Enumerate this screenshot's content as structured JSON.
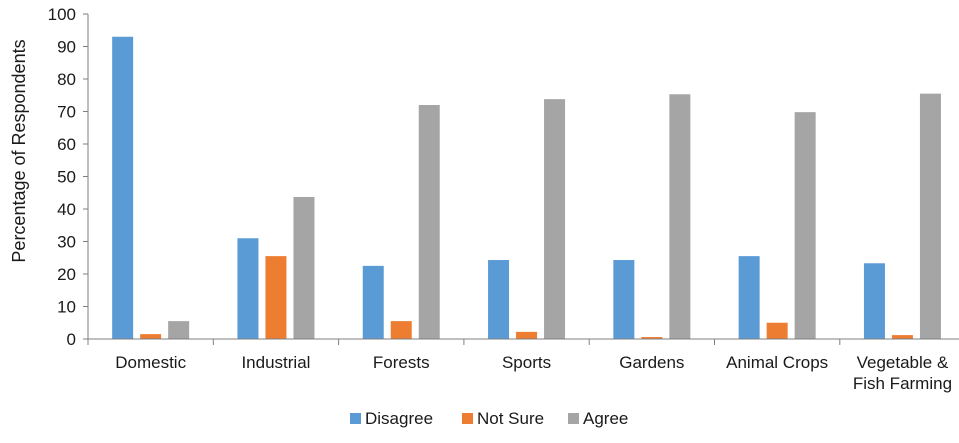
{
  "chart_data": {
    "type": "bar",
    "title": "",
    "xlabel": "",
    "ylabel": "Percentage of  Respondents",
    "ylim": [
      0,
      100
    ],
    "yticks": [
      0,
      10,
      20,
      30,
      40,
      50,
      60,
      70,
      80,
      90,
      100
    ],
    "grid": false,
    "legend_position": "bottom",
    "categories": [
      [
        "Domestic"
      ],
      [
        "Industrial"
      ],
      [
        "Forests"
      ],
      [
        "Sports"
      ],
      [
        "Gardens"
      ],
      [
        "Animal Crops"
      ],
      [
        "Vegetable &",
        "Fish Farming"
      ]
    ],
    "series": [
      {
        "name": "Disagree",
        "color": "#5b9bd5",
        "values": [
          93,
          31,
          22.5,
          24.3,
          24.3,
          25.5,
          23.3
        ]
      },
      {
        "name": "Not Sure",
        "color": "#ed7d31",
        "values": [
          1.5,
          25.5,
          5.5,
          2.2,
          0.6,
          5,
          1.2
        ]
      },
      {
        "name": "Agree",
        "color": "#a5a5a5",
        "values": [
          5.5,
          43.7,
          72,
          73.8,
          75.3,
          69.8,
          75.5
        ]
      }
    ]
  }
}
